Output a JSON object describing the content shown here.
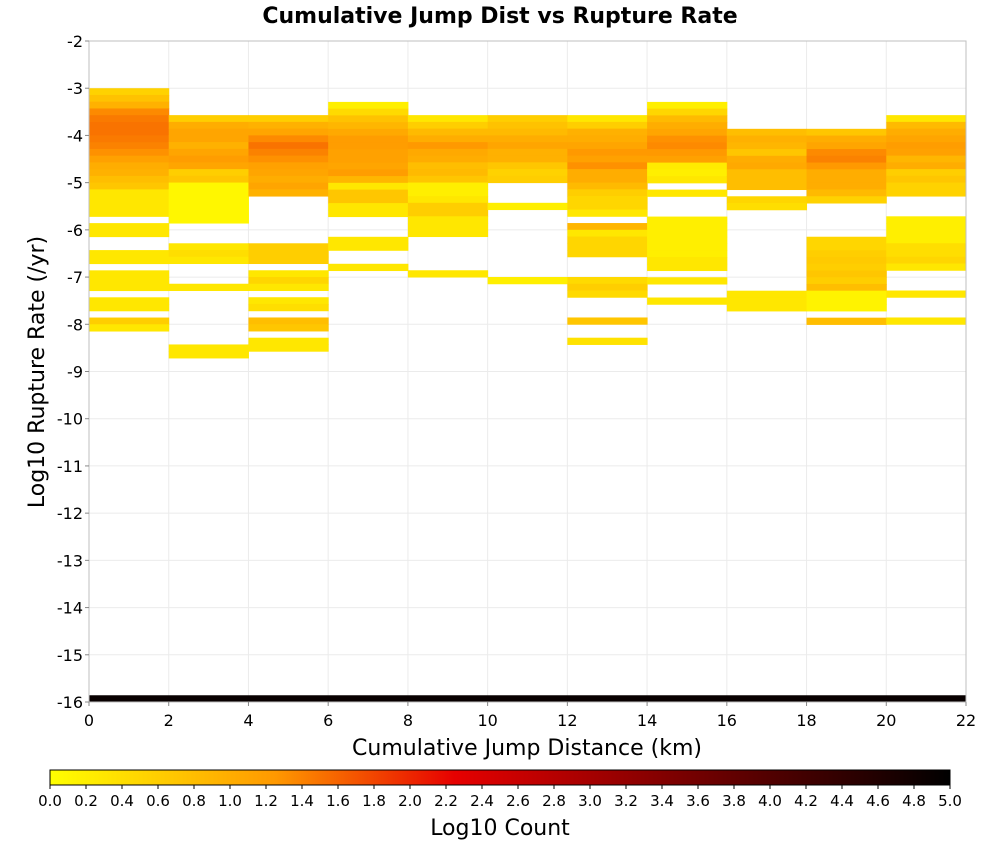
{
  "chart_data": {
    "type": "heatmap",
    "title": "Cumulative Jump Dist vs Rupture Rate",
    "xlabel": "Cumulative Jump Distance (km)",
    "ylabel": "Log10 Rupture Rate (/yr)",
    "xlim": [
      0,
      22
    ],
    "ylim": [
      -16,
      -2
    ],
    "x_ticks": [
      0,
      2,
      4,
      6,
      8,
      10,
      12,
      14,
      16,
      18,
      20,
      22
    ],
    "y_ticks": [
      -2,
      -3,
      -4,
      -5,
      -6,
      -7,
      -8,
      -9,
      -10,
      -11,
      -12,
      -13,
      -14,
      -15,
      -16
    ],
    "x_bin_width": 2,
    "y_bin_height": 0.142857,
    "grid": true,
    "colorbar": {
      "label": "Log10 Count",
      "range": [
        0.0,
        5.0
      ],
      "ticks": [
        "0.0",
        "0.2",
        "0.4",
        "0.6",
        "0.8",
        "1.0",
        "1.2",
        "1.4",
        "1.6",
        "1.8",
        "2.0",
        "2.2",
        "2.4",
        "2.6",
        "2.8",
        "3.0",
        "3.2",
        "3.4",
        "3.6",
        "3.8",
        "4.0",
        "4.2",
        "4.4",
        "4.6",
        "4.8",
        "5.0"
      ],
      "colors": [
        "#ffff00",
        "#ff8c00",
        "#e60000",
        "#7a0000",
        "#000000"
      ],
      "placement": "bottom"
    },
    "columns": [
      {
        "x": 0,
        "y_top": -3.0,
        "values": [
          0.55,
          0.75,
          0.95,
          1.35,
          1.45,
          1.5,
          1.5,
          1.45,
          1.4,
          1.3,
          1.15,
          1.0,
          0.95,
          0.8,
          0.7,
          0.3,
          0.3,
          0.3,
          0.3,
          0,
          0.3,
          0.3,
          0,
          0,
          0.3,
          0.3,
          0,
          0.3,
          0.3,
          0.3,
          0,
          0.3,
          0.3,
          0,
          0.6,
          0.3
        ]
      },
      {
        "x": 2,
        "y_top": -3.57,
        "values": [
          0.6,
          1.0,
          1.1,
          1.1,
          0.95,
          1.1,
          1.2,
          1.1,
          0.6,
          0.7,
          0.1,
          0.1,
          0.1,
          0.1,
          0.1,
          0.1,
          0,
          0,
          0,
          0.3,
          0.4,
          0.3,
          0,
          0,
          0,
          0.3,
          0,
          0,
          0,
          0,
          0,
          0,
          0,
          0,
          0.3,
          0.3
        ]
      },
      {
        "x": 4,
        "y_top": -3.57,
        "values": [
          0.6,
          0.95,
          1.1,
          1.35,
          1.5,
          1.4,
          1.3,
          1.15,
          1.1,
          1.0,
          1.1,
          0.95,
          0,
          0,
          0,
          0,
          0,
          0,
          0,
          0.6,
          0.6,
          0.6,
          0,
          0.3,
          0.5,
          0.3,
          0,
          0.3,
          0.4,
          0,
          0.8,
          0.7,
          0,
          0.3,
          0.3
        ]
      },
      {
        "x": 6,
        "y_top": -3.29,
        "values": [
          0.2,
          0.45,
          0.75,
          0.9,
          1.05,
          1.2,
          1.2,
          1.15,
          1.15,
          1.1,
          1.2,
          0.9,
          0.3,
          0.7,
          0.7,
          0.3,
          0.3,
          0,
          0,
          0,
          0.3,
          0.3,
          0,
          0,
          0.3
        ]
      },
      {
        "x": 8,
        "y_top": -3.57,
        "values": [
          0.3,
          0.6,
          0.85,
          1.0,
          1.25,
          1.05,
          1.0,
          0.8,
          0.85,
          0.7,
          0.2,
          0.2,
          0.3,
          0.6,
          0.6,
          0.3,
          0.3,
          0.3,
          0,
          0,
          0,
          0,
          0,
          0.3
        ]
      },
      {
        "x": 10,
        "y_top": -3.57,
        "values": [
          0.6,
          0.75,
          0.85,
          1.0,
          1.1,
          0.95,
          0.95,
          0.7,
          0.55,
          0.6,
          0,
          0,
          0,
          0.2,
          0,
          0,
          0,
          0,
          0,
          0,
          0,
          0,
          0,
          0,
          0.2
        ]
      },
      {
        "x": 12,
        "y_top": -3.57,
        "values": [
          0.3,
          0.6,
          0.95,
          1.0,
          1.1,
          1.25,
          1.15,
          1.3,
          1.0,
          1.0,
          0.85,
          0.6,
          0.5,
          0.5,
          0.3,
          0,
          0.9,
          0.3,
          0.5,
          0.5,
          0.5,
          0,
          0,
          0,
          0.45,
          0.6,
          0.45,
          0,
          0,
          0,
          0.7,
          0,
          0,
          0.35
        ]
      },
      {
        "x": 14,
        "y_top": -3.29,
        "values": [
          0.2,
          0.5,
          0.85,
          1.0,
          1.1,
          1.3,
          1.35,
          1.25,
          1.15,
          0.25,
          0.2,
          0.3,
          0,
          0.3,
          0,
          0,
          0,
          0.2,
          0.2,
          0.2,
          0.2,
          0.2,
          0.2,
          0.3,
          0.3,
          0,
          0.3,
          0,
          0,
          0.3
        ]
      },
      {
        "x": 16,
        "y_top": -3.86,
        "values": [
          0.8,
          0.95,
          0.9,
          0.7,
          1.0,
          1.05,
          0.8,
          0.8,
          0.8,
          0,
          0.5,
          0.4,
          0,
          0,
          0,
          0,
          0,
          0,
          0,
          0,
          0,
          0,
          0,
          0,
          0.3,
          0.3,
          0.3
        ]
      },
      {
        "x": 18,
        "y_top": -3.86,
        "values": [
          0.7,
          1.0,
          1.1,
          1.35,
          1.4,
          1.25,
          1.0,
          1.0,
          1.0,
          0.85,
          0.55,
          0,
          0,
          0,
          0,
          0,
          0.5,
          0.5,
          0.6,
          0.65,
          0.6,
          0.7,
          0.6,
          0.8,
          0.15,
          0.15,
          0.15,
          0,
          0.8
        ]
      },
      {
        "x": 20,
        "y_top": -3.57,
        "values": [
          0.3,
          0.85,
          1.0,
          1.1,
          1.2,
          1.15,
          0.9,
          1.0,
          0.6,
          0.7,
          0.55,
          0.55,
          0,
          0,
          0,
          0.2,
          0.2,
          0.2,
          0.2,
          0.4,
          0.4,
          0.5,
          0.3,
          0,
          0,
          0,
          0.3,
          0,
          0,
          0,
          0.3
        ]
      }
    ],
    "bottom_row": {
      "y": -16,
      "value": 4.9
    }
  }
}
